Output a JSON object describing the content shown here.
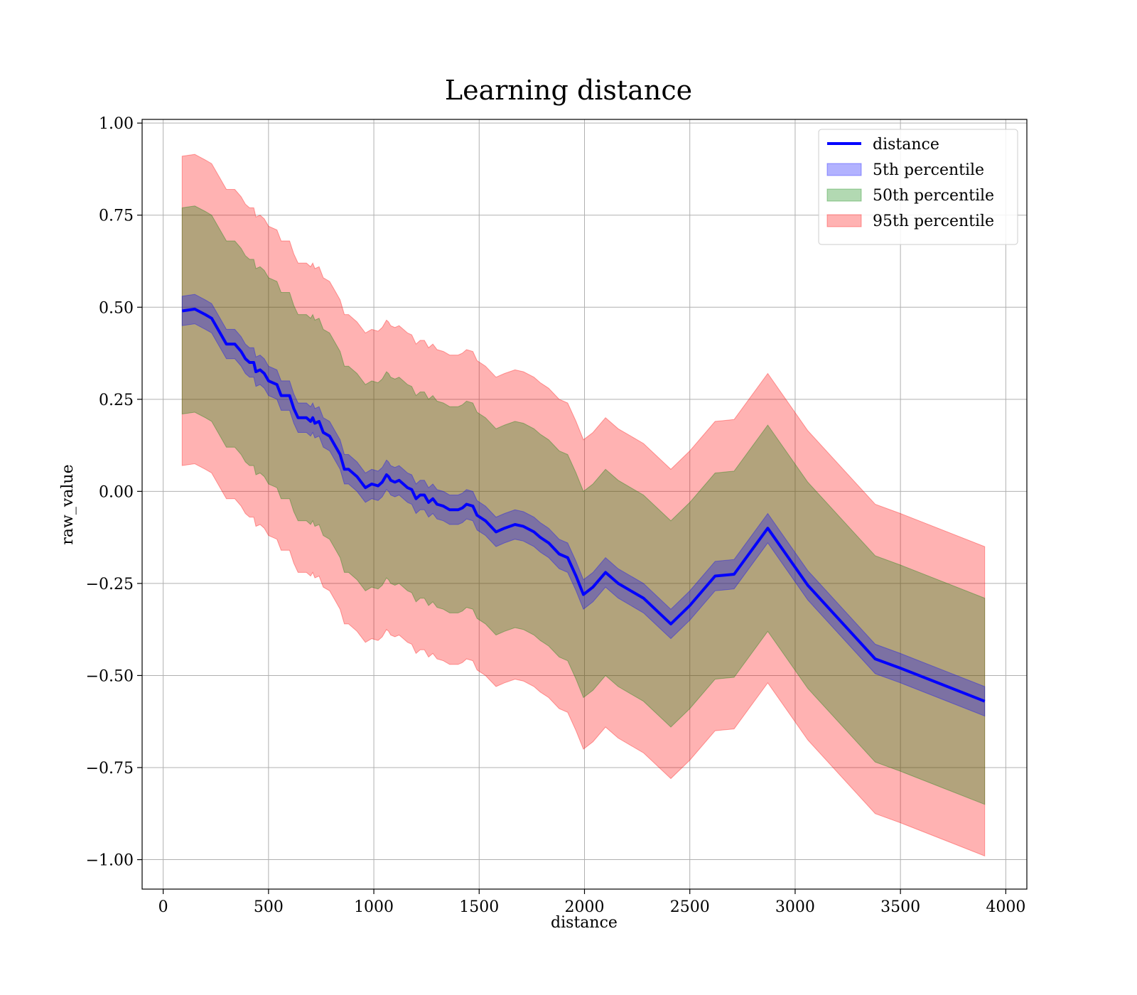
{
  "chart_data": {
    "type": "line",
    "title": "Learning distance",
    "xlabel": "distance",
    "ylabel": "raw_value",
    "xlim": [
      -100,
      4100
    ],
    "ylim": [
      -1.08,
      1.01
    ],
    "xticks": [
      0,
      500,
      1000,
      1500,
      2000,
      2500,
      3000,
      3500,
      4000
    ],
    "xtick_labels": [
      "0",
      "500",
      "1000",
      "1500",
      "2000",
      "2500",
      "3000",
      "3500",
      "4000"
    ],
    "yticks": [
      1.0,
      0.75,
      0.5,
      0.25,
      0.0,
      -0.25,
      -0.5,
      -0.75,
      -1.0
    ],
    "ytick_labels": [
      "1.00",
      "0.75",
      "0.50",
      "0.25",
      "0.00",
      "−0.25",
      "−0.50",
      "−0.75",
      "−1.00"
    ],
    "grid": true,
    "legend_position": "top-right",
    "x": [
      90,
      150,
      200,
      230,
      270,
      300,
      340,
      370,
      390,
      410,
      430,
      440,
      460,
      480,
      500,
      540,
      560,
      600,
      620,
      640,
      660,
      680,
      700,
      710,
      720,
      740,
      760,
      790,
      820,
      840,
      860,
      880,
      920,
      960,
      990,
      1020,
      1040,
      1060,
      1070,
      1080,
      1100,
      1120,
      1140,
      1160,
      1180,
      1200,
      1220,
      1240,
      1260,
      1280,
      1300,
      1330,
      1360,
      1400,
      1420,
      1440,
      1470,
      1490,
      1530,
      1580,
      1620,
      1670,
      1710,
      1760,
      1790,
      1830,
      1880,
      1920,
      1960,
      1995,
      2040,
      2100,
      2160,
      2220,
      2280,
      2410,
      2500,
      2620,
      2710,
      2870,
      3060,
      3380,
      3500,
      3700,
      3900
    ],
    "series": [
      {
        "name": "distance",
        "kind": "line",
        "color": "#0000ff",
        "values": [
          0.49,
          0.495,
          0.48,
          0.47,
          0.43,
          0.4,
          0.4,
          0.38,
          0.36,
          0.35,
          0.35,
          0.325,
          0.33,
          0.32,
          0.3,
          0.29,
          0.26,
          0.26,
          0.225,
          0.2,
          0.2,
          0.2,
          0.19,
          0.2,
          0.185,
          0.19,
          0.16,
          0.15,
          0.12,
          0.1,
          0.06,
          0.06,
          0.04,
          0.01,
          0.02,
          0.015,
          0.025,
          0.045,
          0.04,
          0.03,
          0.025,
          0.03,
          0.02,
          0.01,
          0.005,
          -0.02,
          -0.01,
          -0.01,
          -0.03,
          -0.02,
          -0.035,
          -0.04,
          -0.05,
          -0.05,
          -0.045,
          -0.035,
          -0.04,
          -0.065,
          -0.08,
          -0.11,
          -0.1,
          -0.09,
          -0.095,
          -0.11,
          -0.125,
          -0.14,
          -0.17,
          -0.18,
          -0.23,
          -0.28,
          -0.26,
          -0.22,
          -0.25,
          -0.27,
          -0.29,
          -0.36,
          -0.31,
          -0.23,
          -0.225,
          -0.1,
          -0.255,
          -0.455,
          -0.48,
          -0.525,
          -0.57
        ]
      },
      {
        "name": "5th percentile",
        "kind": "band",
        "color": "#0000ff",
        "opacity": 0.3,
        "values": [
          0.49,
          0.495,
          0.48,
          0.47,
          0.43,
          0.4,
          0.4,
          0.38,
          0.36,
          0.35,
          0.35,
          0.325,
          0.33,
          0.32,
          0.3,
          0.29,
          0.26,
          0.26,
          0.225,
          0.2,
          0.2,
          0.2,
          0.19,
          0.2,
          0.185,
          0.19,
          0.16,
          0.15,
          0.12,
          0.1,
          0.06,
          0.06,
          0.04,
          0.01,
          0.02,
          0.015,
          0.025,
          0.045,
          0.04,
          0.03,
          0.025,
          0.03,
          0.02,
          0.01,
          0.005,
          -0.02,
          -0.01,
          -0.01,
          -0.03,
          -0.02,
          -0.035,
          -0.04,
          -0.05,
          -0.05,
          -0.045,
          -0.035,
          -0.04,
          -0.065,
          -0.08,
          -0.11,
          -0.1,
          -0.09,
          -0.095,
          -0.11,
          -0.125,
          -0.14,
          -0.17,
          -0.18,
          -0.23,
          -0.28,
          -0.26,
          -0.22,
          -0.25,
          -0.27,
          -0.29,
          -0.36,
          -0.31,
          -0.23,
          -0.225,
          -0.1,
          -0.255,
          -0.455,
          -0.48,
          -0.525,
          -0.57
        ],
        "half_width": 0.04
      },
      {
        "name": "50th percentile",
        "kind": "band",
        "color": "#008000",
        "opacity": 0.3,
        "values": [
          0.49,
          0.495,
          0.48,
          0.47,
          0.43,
          0.4,
          0.4,
          0.38,
          0.36,
          0.35,
          0.35,
          0.325,
          0.33,
          0.32,
          0.3,
          0.29,
          0.26,
          0.26,
          0.225,
          0.2,
          0.2,
          0.2,
          0.19,
          0.2,
          0.185,
          0.19,
          0.16,
          0.15,
          0.12,
          0.1,
          0.06,
          0.06,
          0.04,
          0.01,
          0.02,
          0.015,
          0.025,
          0.045,
          0.04,
          0.03,
          0.025,
          0.03,
          0.02,
          0.01,
          0.005,
          -0.02,
          -0.01,
          -0.01,
          -0.03,
          -0.02,
          -0.035,
          -0.04,
          -0.05,
          -0.05,
          -0.045,
          -0.035,
          -0.04,
          -0.065,
          -0.08,
          -0.11,
          -0.1,
          -0.09,
          -0.095,
          -0.11,
          -0.125,
          -0.14,
          -0.17,
          -0.18,
          -0.23,
          -0.28,
          -0.26,
          -0.22,
          -0.25,
          -0.27,
          -0.29,
          -0.36,
          -0.31,
          -0.23,
          -0.225,
          -0.1,
          -0.255,
          -0.455,
          -0.48,
          -0.525,
          -0.57
        ],
        "half_width": 0.28
      },
      {
        "name": "95th percentile",
        "kind": "band",
        "color": "#ff0000",
        "opacity": 0.3,
        "values": [
          0.49,
          0.495,
          0.48,
          0.47,
          0.43,
          0.4,
          0.4,
          0.38,
          0.36,
          0.35,
          0.35,
          0.325,
          0.33,
          0.32,
          0.3,
          0.29,
          0.26,
          0.26,
          0.225,
          0.2,
          0.2,
          0.2,
          0.19,
          0.2,
          0.185,
          0.19,
          0.16,
          0.15,
          0.12,
          0.1,
          0.06,
          0.06,
          0.04,
          0.01,
          0.02,
          0.015,
          0.025,
          0.045,
          0.04,
          0.03,
          0.025,
          0.03,
          0.02,
          0.01,
          0.005,
          -0.02,
          -0.01,
          -0.01,
          -0.03,
          -0.02,
          -0.035,
          -0.04,
          -0.05,
          -0.05,
          -0.045,
          -0.035,
          -0.04,
          -0.065,
          -0.08,
          -0.11,
          -0.1,
          -0.09,
          -0.095,
          -0.11,
          -0.125,
          -0.14,
          -0.17,
          -0.18,
          -0.23,
          -0.28,
          -0.26,
          -0.22,
          -0.25,
          -0.27,
          -0.29,
          -0.36,
          -0.31,
          -0.23,
          -0.225,
          -0.1,
          -0.255,
          -0.455,
          -0.48,
          -0.525,
          -0.57
        ],
        "half_width": 0.42
      }
    ]
  }
}
